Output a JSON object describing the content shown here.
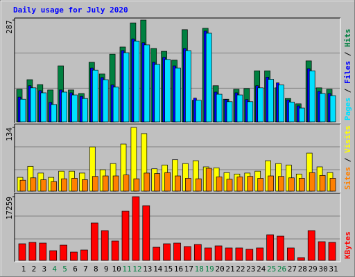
{
  "chart_data": [
    {
      "type": "bar",
      "title": "Daily usage for July 2020",
      "title_color": "#0000ff",
      "ylim": [
        0,
        287
      ],
      "yticks": [
        287
      ],
      "legend_separator": " / ",
      "series": [
        {
          "name": "Hits",
          "color": "#008040",
          "values": [
            92,
            119,
            105,
            90,
            158,
            90,
            80,
            168,
            135,
            191,
            211,
            279,
            287,
            207,
            199,
            174,
            260,
            61,
            264,
            102,
            64,
            92,
            94,
            144,
            144,
            96,
            66,
            51,
            172,
            96,
            92
          ]
        },
        {
          "name": "Files",
          "color": "#0000ff",
          "values": [
            70,
            102,
            88,
            55,
            90,
            82,
            72,
            152,
            125,
            104,
            201,
            234,
            223,
            168,
            182,
            158,
            207,
            67,
            256,
            84,
            63,
            82,
            63,
            102,
            126,
            110,
            62,
            45,
            150,
            86,
            80
          ]
        },
        {
          "name": "Pages",
          "color": "#00e0ff",
          "values": [
            64,
            96,
            82,
            49,
            84,
            76,
            66,
            146,
            119,
            98,
            195,
            228,
            217,
            162,
            176,
            152,
            201,
            61,
            250,
            78,
            57,
            76,
            57,
            96,
            120,
            104,
            56,
            39,
            144,
            80,
            74
          ]
        }
      ]
    },
    {
      "type": "bar",
      "ylim": [
        0,
        134
      ],
      "yticks": [
        134
      ],
      "legend_separator": " / ",
      "series": [
        {
          "name": "Visits",
          "color": "#ffff00",
          "values": [
            29,
            52,
            38,
            29,
            42,
            42,
            38,
            93,
            45,
            58,
            99,
            134,
            121,
            47,
            55,
            66,
            58,
            64,
            51,
            49,
            39,
            36,
            38,
            42,
            64,
            58,
            55,
            36,
            80,
            51,
            39
          ]
        },
        {
          "name": "Sites",
          "color": "#ff8000",
          "values": [
            23,
            28,
            24,
            20,
            26,
            27,
            24,
            31,
            32,
            32,
            34,
            26,
            38,
            37,
            39,
            32,
            27,
            26,
            48,
            30,
            25,
            30,
            31,
            27,
            32,
            31,
            28,
            27,
            39,
            33,
            27
          ]
        }
      ]
    },
    {
      "type": "bar",
      "ylim": [
        0,
        17259
      ],
      "yticks": [
        17259
      ],
      "series": [
        {
          "name": "KBytes",
          "color": "#ff0000",
          "values": [
            4502,
            4877,
            4690,
            2626,
            4127,
            2251,
            2814,
            10130,
            8067,
            5253,
            13320,
            17259,
            14820,
            3564,
            4502,
            4690,
            3752,
            4315,
            3377,
            3939,
            3377,
            3377,
            3002,
            3377,
            6941,
            6566,
            3377,
            750,
            8067,
            5065,
            4877
          ]
        }
      ],
      "categories": [
        "1",
        "2",
        "3",
        "4",
        "5",
        "6",
        "7",
        "8",
        "9",
        "10",
        "11",
        "12",
        "13",
        "14",
        "15",
        "16",
        "17",
        "18",
        "19",
        "20",
        "21",
        "22",
        "23",
        "24",
        "25",
        "26",
        "27",
        "28",
        "29",
        "30",
        "31"
      ],
      "category_color": "#000000",
      "highlight_color": "#008040",
      "highlighted": [
        "4",
        "5",
        "11",
        "12",
        "18",
        "19",
        "25",
        "26"
      ]
    }
  ]
}
